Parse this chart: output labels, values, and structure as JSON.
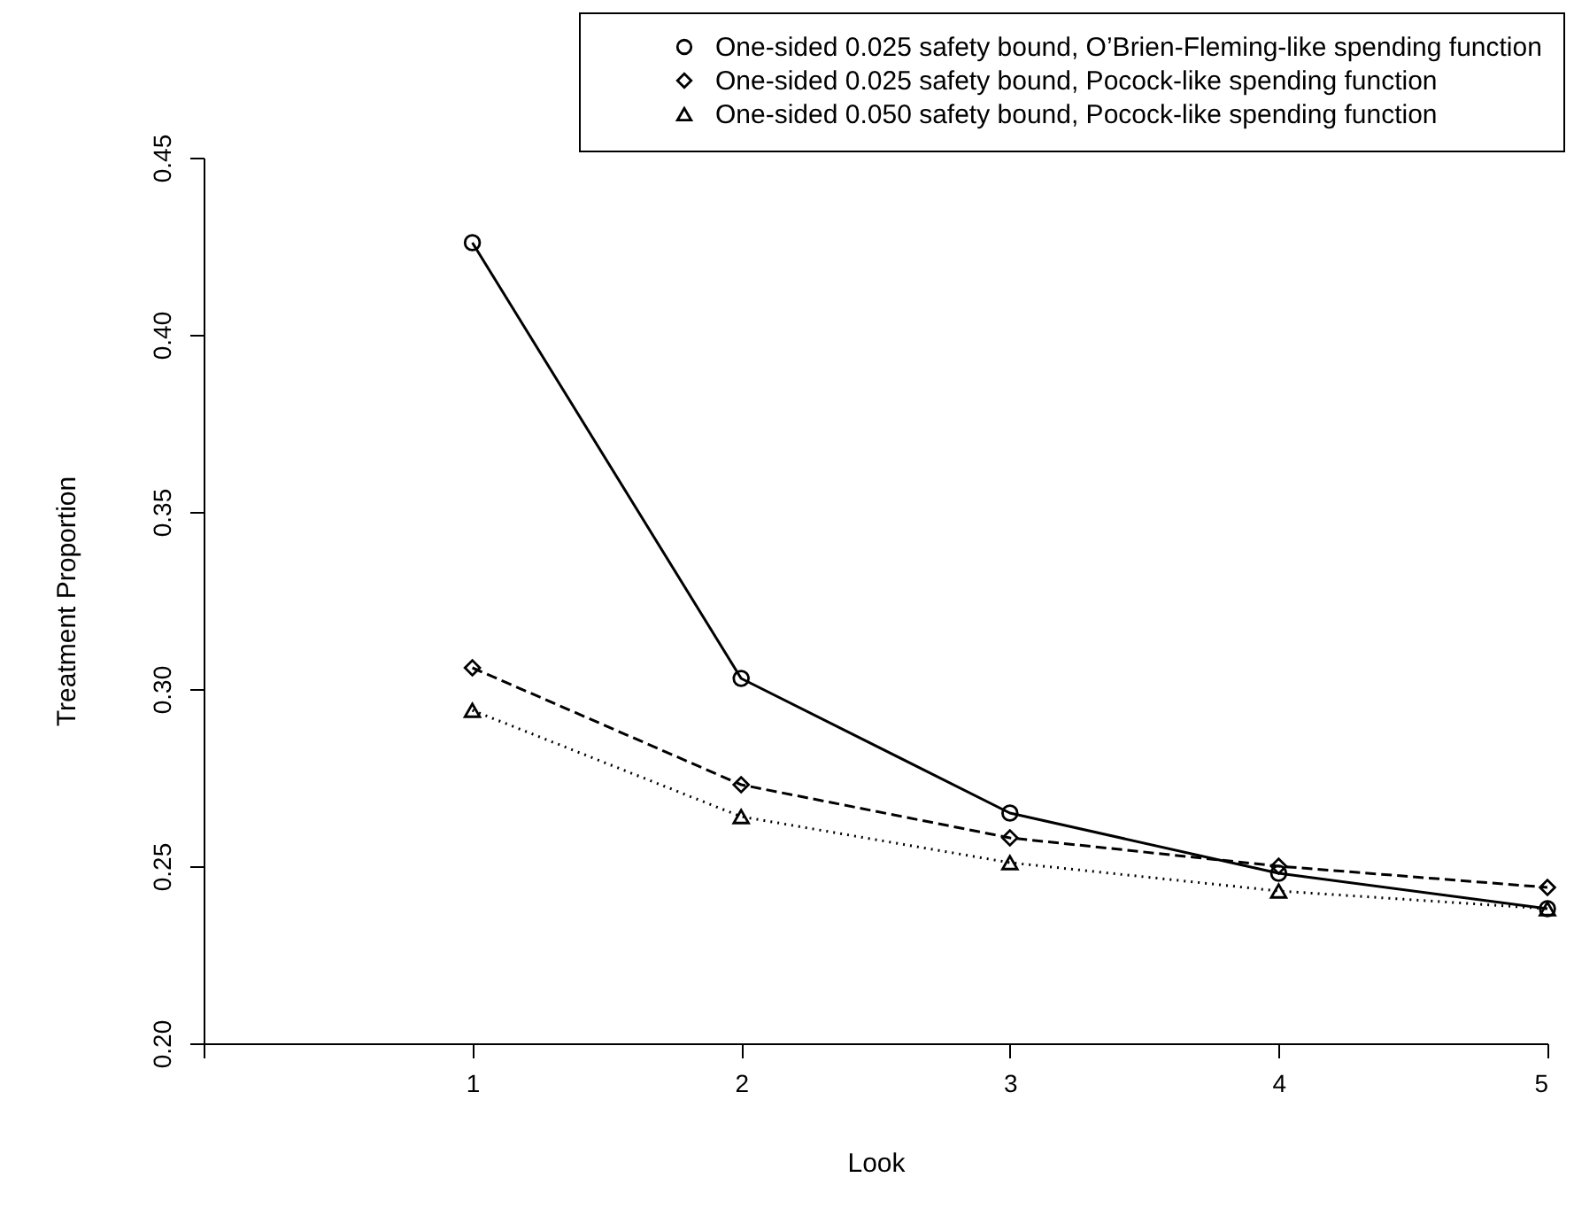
{
  "chart_data": {
    "type": "line",
    "xlabel": "Look",
    "ylabel": "Treatment Proportion",
    "x": [
      1,
      2,
      3,
      4,
      5
    ],
    "series": [
      {
        "name": "One-sided 0.025 safety bound, O’Brien-Fleming-like spending function",
        "color": "#000000",
        "marker": "circle",
        "line_style": "solid",
        "values": [
          0.426,
          0.303,
          0.265,
          0.248,
          0.238
        ]
      },
      {
        "name": "One-sided 0.025 safety bound, Pocock-like spending function",
        "color": "#000000",
        "marker": "diamond",
        "line_style": "dashed",
        "values": [
          0.306,
          0.273,
          0.258,
          0.25,
          0.244
        ]
      },
      {
        "name": "One-sided 0.050 safety bound, Pocock-like spending function",
        "color": "#000000",
        "marker": "triangle",
        "line_style": "dotted",
        "values": [
          0.294,
          0.264,
          0.251,
          0.243,
          0.238
        ]
      }
    ],
    "xlim": [
      0,
      5
    ],
    "xticks": [
      {
        "value": 0,
        "label": null
      },
      {
        "value": 1,
        "label": "1"
      },
      {
        "value": 2,
        "label": "2"
      },
      {
        "value": 3,
        "label": "3"
      },
      {
        "value": 4,
        "label": "4"
      },
      {
        "value": 5,
        "label": "5"
      }
    ],
    "ylim": [
      0.2,
      0.45
    ],
    "yticks": [
      {
        "value": 0.2,
        "label": "0.20"
      },
      {
        "value": 0.25,
        "label": "0.25"
      },
      {
        "value": 0.3,
        "label": "0.30"
      },
      {
        "value": 0.35,
        "label": "0.35"
      },
      {
        "value": 0.4,
        "label": "0.40"
      },
      {
        "value": 0.45,
        "label": "0.45"
      }
    ],
    "grid": false,
    "legend": "top right"
  }
}
